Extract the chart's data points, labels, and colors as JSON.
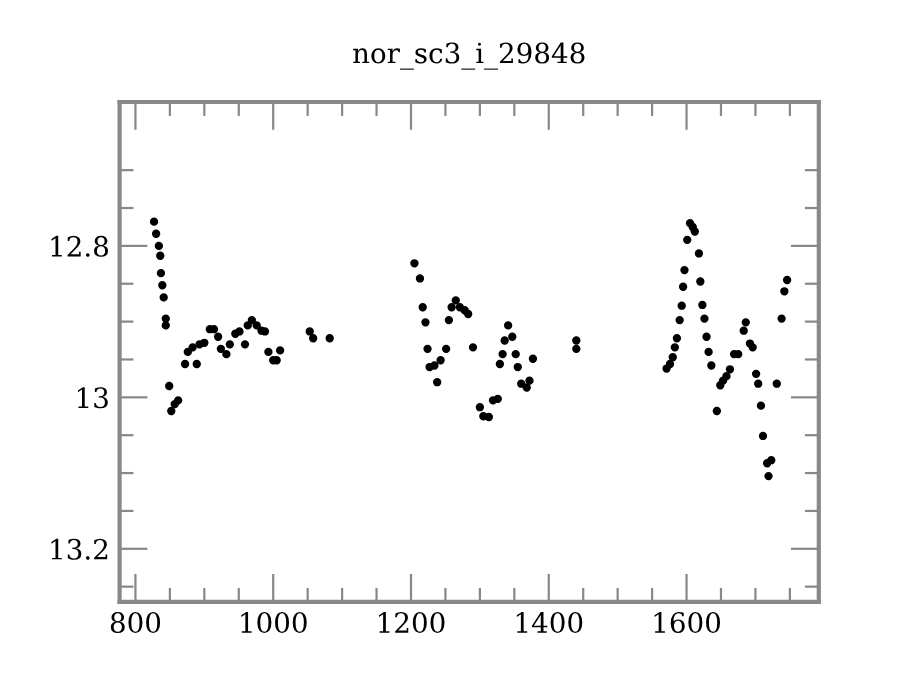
{
  "chart_data": {
    "type": "scatter",
    "title": "nor_sc3_i_29848",
    "marker": "circle",
    "grid": false,
    "legend": false,
    "xlim": [
      777,
      1792
    ],
    "ylim": [
      13.27,
      12.61
    ],
    "xticks": [
      800,
      {
        "value": 850,
        "label": null
      },
      {
        "value": 900,
        "label": null
      },
      {
        "value": 950,
        "label": null
      },
      1000,
      {
        "value": 1050,
        "label": null
      },
      {
        "value": 1100,
        "label": null
      },
      {
        "value": 1150,
        "label": null
      },
      1200,
      {
        "value": 1250,
        "label": null
      },
      {
        "value": 1300,
        "label": null
      },
      {
        "value": 1350,
        "label": null
      },
      1400,
      {
        "value": 1450,
        "label": null
      },
      {
        "value": 1500,
        "label": null
      },
      {
        "value": 1550,
        "label": null
      },
      1600,
      {
        "value": 1650,
        "label": null
      },
      {
        "value": 1700,
        "label": null
      },
      {
        "value": 1750,
        "label": null
      }
    ],
    "yticks": [
      {
        "value": 12.7,
        "label": null
      },
      {
        "value": 12.75,
        "label": null
      },
      12.8,
      {
        "value": 12.85,
        "label": null
      },
      {
        "value": 12.9,
        "label": null
      },
      {
        "value": 12.95,
        "label": null
      },
      13,
      {
        "value": 13.05,
        "label": null
      },
      {
        "value": 13.1,
        "label": null
      },
      {
        "value": 13.15,
        "label": null
      },
      13.2,
      {
        "value": 13.25,
        "label": null
      }
    ],
    "series": [
      {
        "color": "#000000",
        "x": [
          827,
          830,
          834,
          836,
          837,
          839,
          841,
          844,
          844,
          849,
          852,
          857,
          862,
          872,
          876,
          883,
          889,
          893,
          900,
          908,
          914,
          920,
          924,
          932,
          937,
          945,
          951,
          959,
          963,
          969,
          976,
          983,
          988,
          993,
          1000,
          1005,
          1010,
          1053,
          1058,
          1082,
          1205,
          1213,
          1217,
          1221,
          1224,
          1227,
          1234,
          1238,
          1243,
          1251,
          1255,
          1259,
          1265,
          1271,
          1278,
          1283,
          1290,
          1300,
          1305,
          1313,
          1319,
          1326,
          1329,
          1333,
          1336,
          1341,
          1347,
          1352,
          1355,
          1360,
          1368,
          1372,
          1377,
          1440,
          1440,
          1571,
          1576,
          1580,
          1583,
          1586,
          1590,
          1593,
          1595,
          1597,
          1601,
          1605,
          1609,
          1612,
          1618,
          1620,
          1623,
          1626,
          1629,
          1632,
          1636,
          1644,
          1649,
          1653,
          1658,
          1663,
          1669,
          1675,
          1683,
          1686,
          1692,
          1696,
          1701,
          1704,
          1708,
          1711,
          1717,
          1719,
          1723,
          1731,
          1738,
          1742,
          1746
        ],
        "values": [
          12.768,
          12.784,
          12.8,
          12.813,
          12.836,
          12.852,
          12.868,
          12.896,
          12.905,
          12.985,
          13.018,
          13.009,
          13.004,
          12.956,
          12.94,
          12.934,
          12.956,
          12.93,
          12.928,
          12.91,
          12.91,
          12.92,
          12.936,
          12.943,
          12.93,
          12.916,
          12.913,
          12.93,
          12.905,
          12.898,
          12.905,
          12.912,
          12.913,
          12.94,
          12.951,
          12.951,
          12.938,
          12.913,
          12.922,
          12.922,
          12.823,
          12.843,
          12.881,
          12.901,
          12.936,
          12.96,
          12.958,
          12.98,
          12.951,
          12.936,
          12.898,
          12.881,
          12.872,
          12.881,
          12.885,
          12.89,
          12.934,
          13.013,
          13.025,
          13.026,
          13.004,
          13.002,
          12.956,
          12.943,
          12.925,
          12.905,
          12.92,
          12.943,
          12.96,
          12.982,
          12.987,
          12.978,
          12.949,
          12.925,
          12.936,
          12.962,
          12.956,
          12.947,
          12.934,
          12.922,
          12.898,
          12.879,
          12.854,
          12.832,
          12.792,
          12.77,
          12.775,
          12.781,
          12.81,
          12.847,
          12.878,
          12.896,
          12.92,
          12.94,
          12.958,
          13.018,
          12.984,
          12.978,
          12.972,
          12.963,
          12.943,
          12.943,
          12.912,
          12.901,
          12.929,
          12.934,
          12.969,
          12.982,
          13.011,
          13.051,
          13.087,
          13.104,
          13.083,
          12.982,
          12.896,
          12.86,
          12.845
        ]
      }
    ]
  }
}
